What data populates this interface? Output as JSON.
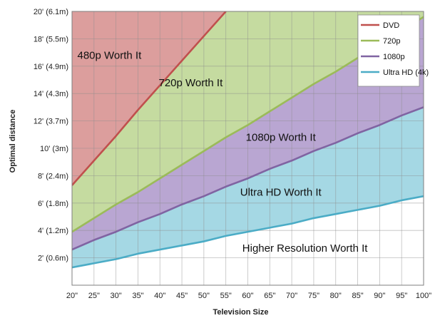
{
  "chart_data": {
    "type": "area",
    "title": "",
    "xlabel": "Television Size",
    "ylabel": "Optimal distance",
    "xlim": [
      20,
      100
    ],
    "ylim": [
      0,
      20
    ],
    "x": [
      20,
      25,
      30,
      35,
      40,
      45,
      50,
      55,
      60,
      65,
      70,
      75,
      80,
      85,
      90,
      95,
      100
    ],
    "x_tick_labels": [
      "20\"",
      "25\"",
      "30\"",
      "35\"",
      "40\"",
      "45\"",
      "50\"",
      "55\"",
      "60\"",
      "65\"",
      "70\"",
      "75\"",
      "80\"",
      "85\"",
      "90\"",
      "95\"",
      "100\""
    ],
    "y_ticks": [
      2,
      4,
      6,
      8,
      10,
      12,
      14,
      16,
      18,
      20
    ],
    "y_tick_labels": [
      "2' (0.6m)",
      "4' (1.2m)",
      "6' (1.8m)",
      "8' (2.4m)",
      "10' (3m)",
      "12' (3.7m)",
      "14' (4.3m)",
      "16' (4.9m)",
      "18' (5.5m)",
      "20' (6.1m)"
    ],
    "grid": true,
    "legend_position": "top-right",
    "series": [
      {
        "name": "DVD",
        "color": "#c0504d",
        "fill": "#dc9e9d",
        "values": [
          7.3,
          9.1,
          10.9,
          12.8,
          14.6,
          16.4,
          18.2,
          20.0,
          null,
          null,
          null,
          null,
          null,
          null,
          null,
          null,
          null
        ]
      },
      {
        "name": "720p",
        "color": "#9bbb59",
        "fill": "#c5dba0",
        "values": [
          3.9,
          4.9,
          5.9,
          6.8,
          7.8,
          8.8,
          9.8,
          10.8,
          11.7,
          12.7,
          13.7,
          14.7,
          15.6,
          16.6,
          17.6,
          18.6,
          19.6
        ]
      },
      {
        "name": "1080p",
        "color": "#8064a2",
        "fill": "#b9a6d2",
        "values": [
          2.6,
          3.3,
          3.9,
          4.6,
          5.2,
          5.9,
          6.5,
          7.2,
          7.8,
          8.5,
          9.1,
          9.8,
          10.4,
          11.1,
          11.7,
          12.4,
          13.0
        ]
      },
      {
        "name": "Ultra HD (4k)",
        "color": "#4bacc6",
        "fill": "#a5d8e4",
        "values": [
          1.3,
          1.6,
          1.9,
          2.3,
          2.6,
          2.9,
          3.2,
          3.6,
          3.9,
          4.2,
          4.5,
          4.9,
          5.2,
          5.5,
          5.8,
          6.2,
          6.5
        ]
      }
    ],
    "annotations": [
      {
        "text": "480p Worth It",
        "x": 28.5,
        "y": 16.8
      },
      {
        "text": "720p Worth It",
        "x": 47,
        "y": 14.8
      },
      {
        "text": "1080p Worth It",
        "x": 67.5,
        "y": 10.8
      },
      {
        "text": "Ultra HD Worth It",
        "x": 67.5,
        "y": 6.8
      },
      {
        "text": "Higher Resolution Worth It",
        "x": 73,
        "y": 2.7
      }
    ]
  }
}
